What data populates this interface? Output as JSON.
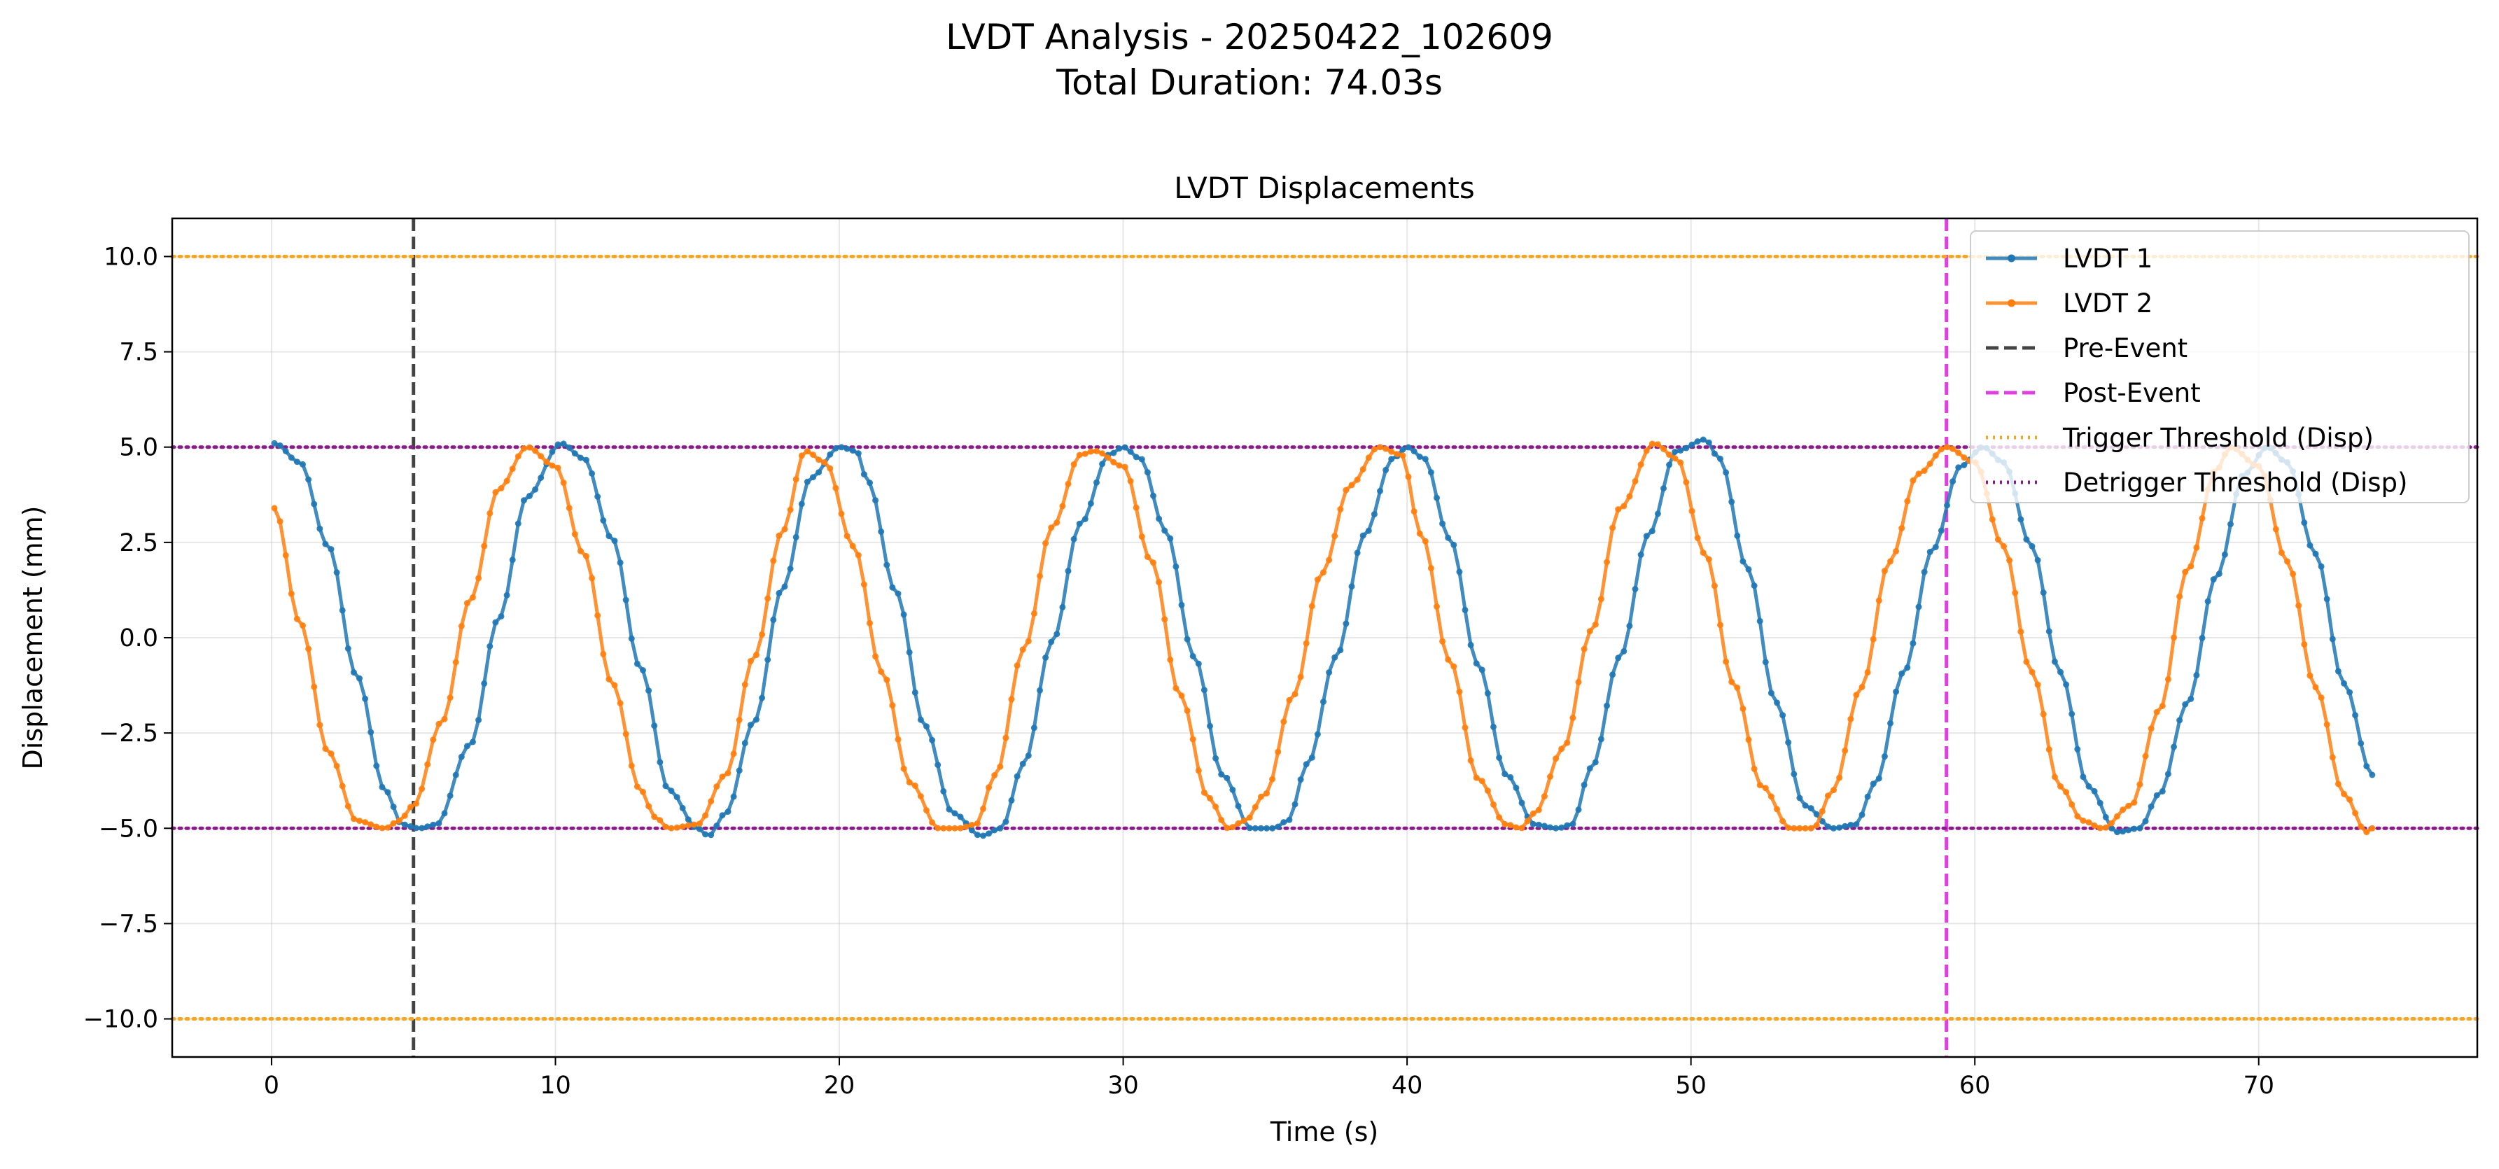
{
  "figure": {
    "suptitle_line1": "LVDT Analysis - 20250422_102609",
    "suptitle_line2": "Total Duration: 74.03s"
  },
  "chart_data": {
    "type": "line",
    "title": "LVDT Displacements",
    "xlabel": "Time (s)",
    "ylabel": "Displacement (mm)",
    "xlim": [
      -3.5,
      77.7
    ],
    "ylim": [
      -11.0,
      11.0
    ],
    "xticks": [
      0,
      10,
      20,
      30,
      40,
      50,
      60,
      70
    ],
    "yticks": [
      -10.0,
      -7.5,
      -5.0,
      -2.5,
      0.0,
      2.5,
      5.0,
      7.5,
      10.0
    ],
    "xtick_labels": [
      "0",
      "10",
      "20",
      "30",
      "40",
      "50",
      "60",
      "70"
    ],
    "ytick_labels": [
      "−10.0",
      "−7.5",
      "−5.0",
      "−2.5",
      "0.0",
      "2.5",
      "5.0",
      "7.5",
      "10.0"
    ],
    "grid": true,
    "legend_position": "upper right",
    "series": [
      {
        "name": "LVDT 1",
        "color": "#1f77b4",
        "t_start": 0.1,
        "t_end": 74.0,
        "x": [
          0.1,
          1.0,
          2.0,
          3.0,
          4.0,
          4.6,
          5.2,
          5.8,
          7.0,
          8.0,
          9.0,
          10.2,
          11.0,
          12.0,
          13.0,
          14.0,
          15.0,
          15.4,
          16.0,
          17.0,
          18.0,
          19.0,
          20.0,
          20.6,
          21.0,
          22.0,
          23.0,
          24.0,
          25.0,
          25.7,
          26.5,
          27.5,
          28.5,
          29.5,
          30.0,
          30.6,
          31.5,
          32.5,
          33.5,
          34.5,
          35.3,
          35.8,
          36.5,
          37.5,
          38.5,
          39.5,
          40.0,
          40.6,
          41.5,
          42.5,
          43.5,
          44.5,
          45.3,
          45.8,
          46.5,
          47.5,
          48.5,
          49.5,
          50.5,
          51.0,
          52.0,
          53.0,
          54.0,
          55.0,
          55.8,
          56.5,
          57.5,
          58.5,
          59.5,
          60.3,
          61.0,
          62.0,
          63.0,
          64.0,
          65.0,
          65.8,
          66.5,
          67.5,
          68.5,
          69.5,
          70.3,
          71.0,
          72.0,
          73.0,
          74.0
        ],
        "y": [
          5.1,
          4.6,
          2.4,
          -1.0,
          -4.0,
          -4.9,
          -5.0,
          -4.9,
          -2.8,
          0.5,
          3.7,
          5.1,
          4.7,
          2.6,
          -0.8,
          -4.0,
          -5.0,
          -5.2,
          -4.6,
          -2.2,
          1.3,
          4.2,
          5.0,
          4.9,
          4.1,
          1.2,
          -2.3,
          -4.6,
          -5.2,
          -5.0,
          -3.3,
          -0.1,
          3.0,
          4.8,
          5.0,
          4.7,
          2.8,
          -0.5,
          -3.6,
          -5.0,
          -5.0,
          -4.8,
          -3.3,
          -0.5,
          2.7,
          4.7,
          5.0,
          4.7,
          2.6,
          -0.7,
          -3.6,
          -4.9,
          -5.0,
          -4.9,
          -3.4,
          -0.5,
          2.7,
          4.9,
          5.2,
          4.7,
          1.8,
          -1.7,
          -4.4,
          -5.0,
          -4.9,
          -3.8,
          -0.9,
          2.3,
          4.5,
          5.0,
          4.6,
          2.4,
          -0.9,
          -3.9,
          -5.1,
          -5.0,
          -4.1,
          -1.7,
          1.6,
          4.3,
          5.0,
          4.6,
          2.2,
          -1.2,
          -3.6
        ]
      },
      {
        "name": "LVDT 2",
        "color": "#ff7f0e",
        "t_start": 0.1,
        "t_end": 74.0,
        "x": [
          0.1,
          1.0,
          2.0,
          3.0,
          4.0,
          4.5,
          5.0,
          6.0,
          7.0,
          8.0,
          9.0,
          10.0,
          11.0,
          12.0,
          13.0,
          13.5,
          14.0,
          15.0,
          16.0,
          17.0,
          18.0,
          18.8,
          19.5,
          20.5,
          21.5,
          22.5,
          23.5,
          24.2,
          24.8,
          25.5,
          26.5,
          27.5,
          28.5,
          29.0,
          30.0,
          31.0,
          32.0,
          33.0,
          33.7,
          34.3,
          35.0,
          36.0,
          37.0,
          38.0,
          39.0,
          39.8,
          40.5,
          41.5,
          42.5,
          43.5,
          44.0,
          44.5,
          45.5,
          46.5,
          47.5,
          48.7,
          49.5,
          50.5,
          51.5,
          52.5,
          53.5,
          54.3,
          55.0,
          56.0,
          57.0,
          58.0,
          59.0,
          60.0,
          61.0,
          62.0,
          63.0,
          63.8,
          64.5,
          65.5,
          66.5,
          67.5,
          68.5,
          69.0,
          70.0,
          71.0,
          72.0,
          73.0,
          73.8,
          74.0
        ],
        "y": [
          3.4,
          0.4,
          -3.0,
          -4.8,
          -5.0,
          -4.8,
          -4.4,
          -2.2,
          1.0,
          3.9,
          5.0,
          4.5,
          2.2,
          -1.2,
          -4.0,
          -4.7,
          -5.0,
          -4.9,
          -3.6,
          -0.5,
          2.8,
          4.9,
          4.6,
          2.4,
          -0.9,
          -3.8,
          -5.0,
          -5.0,
          -4.9,
          -3.6,
          -0.3,
          2.9,
          4.8,
          4.9,
          4.5,
          2.0,
          -1.5,
          -4.2,
          -5.0,
          -4.8,
          -4.1,
          -1.5,
          1.7,
          4.0,
          5.0,
          4.8,
          2.7,
          -0.6,
          -3.7,
          -4.9,
          -5.0,
          -4.6,
          -2.9,
          0.2,
          3.4,
          5.1,
          4.7,
          2.2,
          -1.2,
          -3.9,
          -5.0,
          -5.0,
          -4.0,
          -1.3,
          2.0,
          4.3,
          5.0,
          4.6,
          2.4,
          -0.9,
          -3.9,
          -4.8,
          -5.0,
          -4.4,
          -1.9,
          1.8,
          4.4,
          5.0,
          4.5,
          2.0,
          -1.3,
          -4.1,
          -5.1,
          -5.0
        ]
      }
    ],
    "reference_lines": [
      {
        "name": "Pre-Event",
        "orientation": "vertical",
        "value": 5.0,
        "color": "#444444",
        "style": "dashed"
      },
      {
        "name": "Post-Event",
        "orientation": "vertical",
        "value": 59.0,
        "color": "#e040e0",
        "style": "dashed"
      },
      {
        "name": "Trigger Threshold (Disp)",
        "orientation": "horizontal",
        "values": [
          10.0,
          -10.0
        ],
        "color": "#f5a623",
        "style": "dotted"
      },
      {
        "name": "Detrigger Threshold (Disp)",
        "orientation": "horizontal",
        "values": [
          5.0,
          -5.0
        ],
        "color": "#8b1a8b",
        "style": "dotted"
      }
    ]
  },
  "legend": {
    "entries": [
      {
        "label": "LVDT 1",
        "color": "#1f77b4",
        "style": "line-marker"
      },
      {
        "label": "LVDT 2",
        "color": "#ff7f0e",
        "style": "line-marker"
      },
      {
        "label": "Pre-Event",
        "color": "#444444",
        "style": "dashed"
      },
      {
        "label": "Post-Event",
        "color": "#e040e0",
        "style": "dashed"
      },
      {
        "label": "Trigger Threshold (Disp)",
        "color": "#f5a623",
        "style": "dotted"
      },
      {
        "label": "Detrigger Threshold (Disp)",
        "color": "#8b1a8b",
        "style": "dotted"
      }
    ]
  }
}
